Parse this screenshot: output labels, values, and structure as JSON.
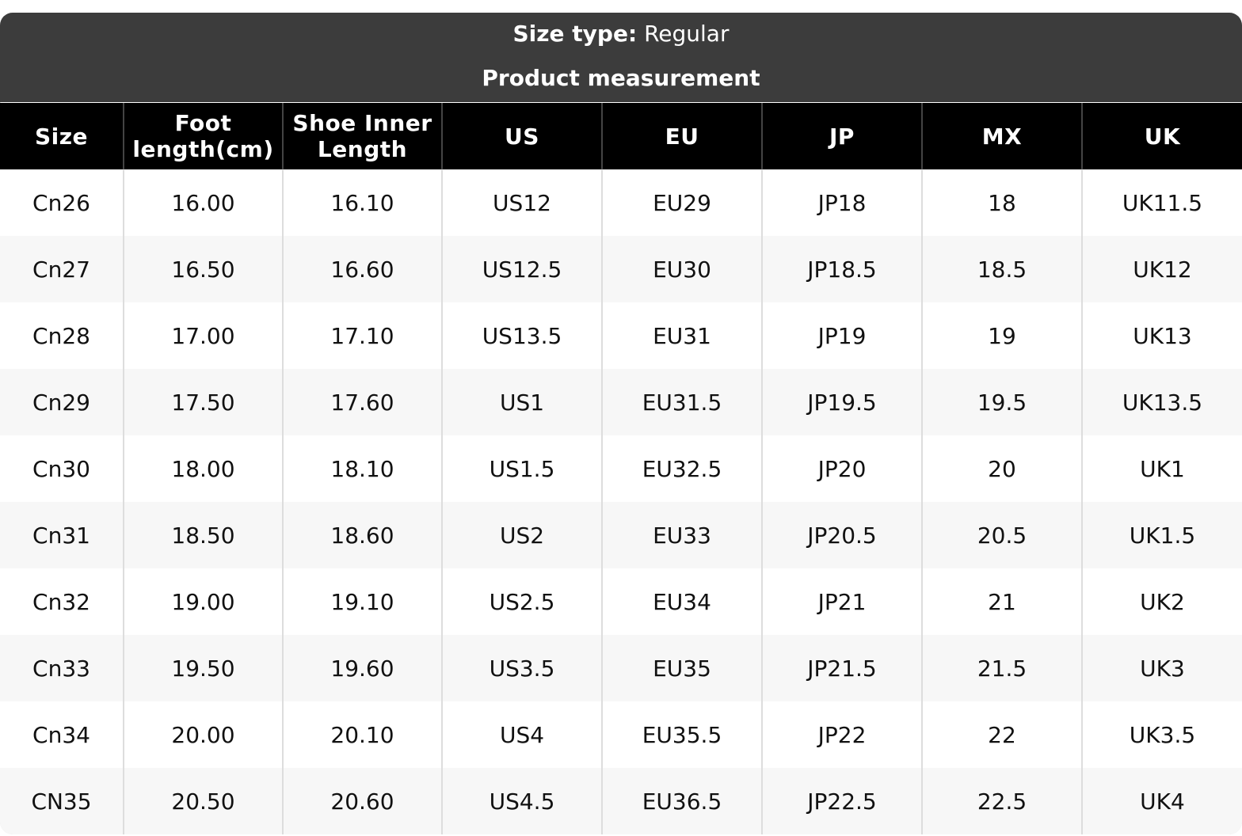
{
  "header": {
    "size_type_label": "Size type:",
    "size_type_value": "Regular",
    "subtitle": "Product measurement"
  },
  "table": {
    "columns": [
      "Size",
      "Foot length(cm)",
      "Shoe Inner Length",
      "US",
      "EU",
      "JP",
      "MX",
      "UK"
    ],
    "rows": [
      [
        "Cn26",
        "16.00",
        "16.10",
        "US12",
        "EU29",
        "JP18",
        "18",
        "UK11.5"
      ],
      [
        "Cn27",
        "16.50",
        "16.60",
        "US12.5",
        "EU30",
        "JP18.5",
        "18.5",
        "UK12"
      ],
      [
        "Cn28",
        "17.00",
        "17.10",
        "US13.5",
        "EU31",
        "JP19",
        "19",
        "UK13"
      ],
      [
        "Cn29",
        "17.50",
        "17.60",
        "US1",
        "EU31.5",
        "JP19.5",
        "19.5",
        "UK13.5"
      ],
      [
        "Cn30",
        "18.00",
        "18.10",
        "US1.5",
        "EU32.5",
        "JP20",
        "20",
        "UK1"
      ],
      [
        "Cn31",
        "18.50",
        "18.60",
        "US2",
        "EU33",
        "JP20.5",
        "20.5",
        "UK1.5"
      ],
      [
        "Cn32",
        "19.00",
        "19.10",
        "US2.5",
        "EU34",
        "JP21",
        "21",
        "UK2"
      ],
      [
        "Cn33",
        "19.50",
        "19.60",
        "US3.5",
        "EU35",
        "JP21.5",
        "21.5",
        "UK3"
      ],
      [
        "Cn34",
        "20.00",
        "20.10",
        "US4",
        "EU35.5",
        "JP22",
        "22",
        "UK3.5"
      ],
      [
        "CN35",
        "20.50",
        "20.60",
        "US4.5",
        "EU36.5",
        "JP22.5",
        "22.5",
        "UK4"
      ]
    ]
  }
}
